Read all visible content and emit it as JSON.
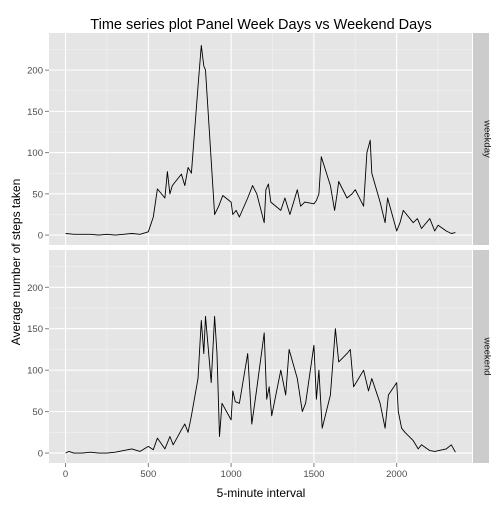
{
  "chart_data": {
    "type": "line",
    "title": "Time series plot Panel Week Days vs Weekend Days",
    "xlabel": "5-minute interval",
    "ylabel": "Average number of steps taken",
    "xlim": [
      -100,
      2455
    ],
    "ylim": [
      -12,
      245
    ],
    "x_ticks": [
      0,
      500,
      1000,
      1500,
      2000
    ],
    "y_ticks": [
      0,
      50,
      100,
      150,
      200
    ],
    "minor_x_ticks": [
      250,
      750,
      1250,
      1750,
      2250
    ],
    "minor_y_ticks": [
      25,
      75,
      125,
      175,
      225
    ],
    "grid": true,
    "facet_strip_position": "right",
    "panels": [
      {
        "label": "weekday",
        "x": [
          0,
          50,
          100,
          150,
          200,
          250,
          300,
          350,
          400,
          450,
          500,
          530,
          555,
          600,
          615,
          630,
          645,
          700,
          720,
          740,
          760,
          800,
          820,
          835,
          845,
          900,
          925,
          950,
          1000,
          1010,
          1030,
          1050,
          1100,
          1130,
          1155,
          1200,
          1210,
          1225,
          1240,
          1300,
          1325,
          1355,
          1400,
          1420,
          1445,
          1500,
          1515,
          1530,
          1545,
          1600,
          1625,
          1640,
          1650,
          1700,
          1730,
          1750,
          1800,
          1820,
          1840,
          1850,
          1900,
          1930,
          1945,
          2000,
          2020,
          2040,
          2100,
          2125,
          2150,
          2200,
          2230,
          2250,
          2300,
          2330,
          2355
        ],
        "y": [
          2,
          1,
          1,
          1,
          0,
          1,
          0,
          1,
          2,
          1,
          4,
          22,
          56,
          45,
          77,
          50,
          60,
          74,
          60,
          82,
          75,
          180,
          230,
          205,
          200,
          25,
          35,
          48,
          40,
          25,
          30,
          22,
          45,
          60,
          50,
          15,
          55,
          62,
          40,
          30,
          45,
          25,
          55,
          35,
          40,
          38,
          42,
          50,
          95,
          60,
          30,
          50,
          65,
          45,
          50,
          55,
          35,
          100,
          115,
          75,
          40,
          15,
          45,
          5,
          15,
          30,
          15,
          20,
          8,
          20,
          5,
          12,
          5,
          2,
          3
        ]
      },
      {
        "label": "weekend",
        "x": [
          0,
          20,
          50,
          100,
          150,
          200,
          250,
          300,
          350,
          400,
          450,
          500,
          530,
          555,
          600,
          630,
          650,
          700,
          720,
          740,
          760,
          800,
          820,
          835,
          845,
          880,
          900,
          915,
          930,
          945,
          1000,
          1010,
          1025,
          1050,
          1100,
          1125,
          1150,
          1200,
          1215,
          1230,
          1245,
          1300,
          1330,
          1350,
          1400,
          1430,
          1450,
          1500,
          1515,
          1530,
          1550,
          1600,
          1630,
          1650,
          1700,
          1720,
          1740,
          1800,
          1830,
          1850,
          1900,
          1930,
          1950,
          2000,
          2010,
          2030,
          2050,
          2100,
          2130,
          2150,
          2200,
          2230,
          2300,
          2330,
          2355
        ],
        "y": [
          0,
          2,
          0,
          0,
          1,
          0,
          0,
          1,
          3,
          5,
          2,
          8,
          4,
          18,
          5,
          20,
          10,
          28,
          35,
          25,
          45,
          90,
          160,
          120,
          165,
          85,
          165,
          120,
          20,
          60,
          40,
          75,
          62,
          60,
          120,
          35,
          70,
          145,
          65,
          80,
          45,
          100,
          70,
          125,
          90,
          50,
          60,
          130,
          65,
          100,
          30,
          70,
          150,
          110,
          120,
          125,
          80,
          100,
          75,
          90,
          60,
          30,
          70,
          85,
          50,
          30,
          25,
          15,
          5,
          10,
          3,
          2,
          5,
          10,
          1
        ]
      }
    ]
  }
}
